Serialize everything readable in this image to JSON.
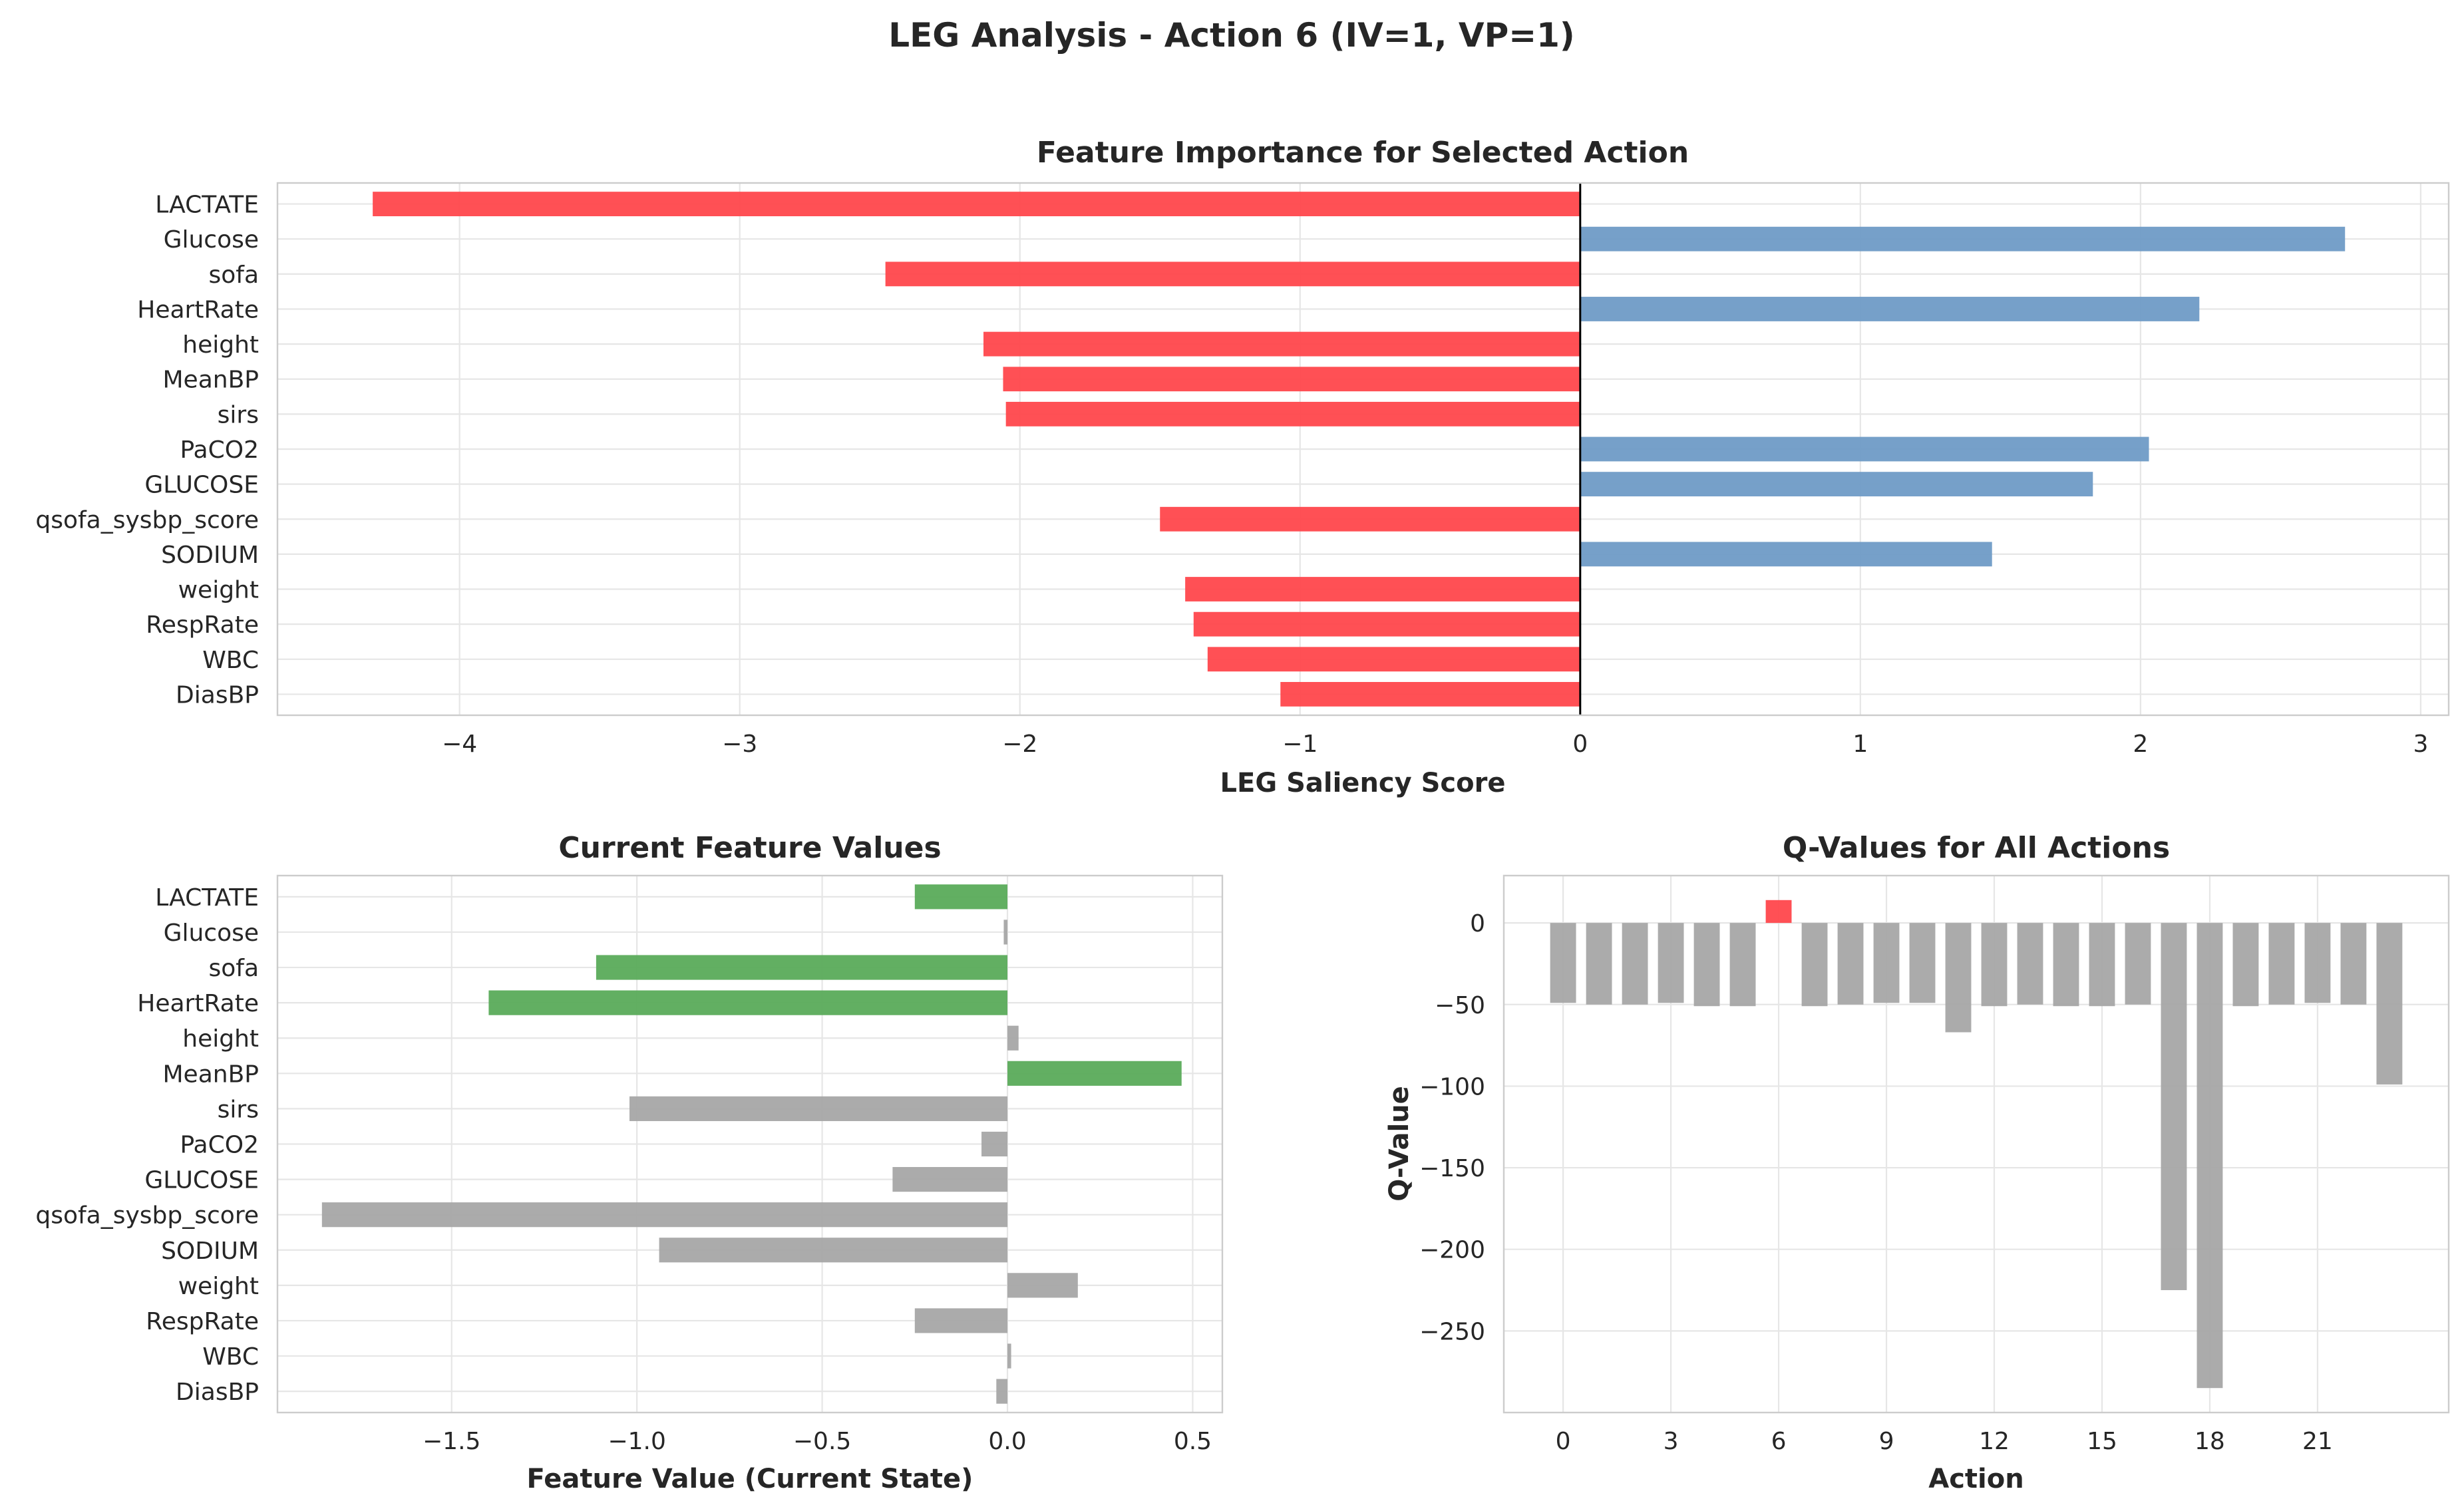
{
  "suptitle": "LEG Analysis - Action 6 (IV=1, VP=1)",
  "colors": {
    "negative": "#ff474c",
    "positive": "#6f9bc6",
    "highlight_value": "#5aab5a",
    "neutral": "#a6a6a6",
    "selected_action": "#ff474c",
    "zero_line": "#000000"
  },
  "chart_data": [
    {
      "type": "bar",
      "orientation": "horizontal",
      "title": "Feature Importance for Selected Action",
      "xlabel": "LEG Saliency Score",
      "ylabel": "",
      "categories": [
        "LACTATE",
        "Glucose",
        "sofa",
        "HeartRate",
        "height",
        "MeanBP",
        "sirs",
        "PaCO2",
        "GLUCOSE",
        "qsofa_sysbp_score",
        "SODIUM",
        "weight",
        "RespRate",
        "WBC",
        "DiasBP"
      ],
      "values": [
        -4.31,
        2.73,
        -2.48,
        2.21,
        -2.13,
        -2.06,
        -2.05,
        2.03,
        1.83,
        -1.5,
        1.47,
        -1.41,
        -1.38,
        -1.33,
        -1.07
      ],
      "xlim": [
        -4.65,
        3.1
      ],
      "xticks": [
        -4,
        -3,
        -2,
        -1,
        0,
        1,
        2,
        3
      ],
      "xtick_labels": [
        "−4",
        "−3",
        "−2",
        "−1",
        "0",
        "1",
        "2",
        "3"
      ],
      "grid": true
    },
    {
      "type": "bar",
      "orientation": "horizontal",
      "title": "Current Feature Values",
      "xlabel": "Feature Value (Current State)",
      "ylabel": "",
      "categories": [
        "LACTATE",
        "Glucose",
        "sofa",
        "HeartRate",
        "height",
        "MeanBP",
        "sirs",
        "PaCO2",
        "GLUCOSE",
        "qsofa_sysbp_score",
        "SODIUM",
        "weight",
        "RespRate",
        "WBC",
        "DiasBP"
      ],
      "values": [
        -0.25,
        -0.01,
        -1.11,
        -1.4,
        0.03,
        0.47,
        -1.02,
        -0.07,
        -0.31,
        -1.85,
        -0.94,
        0.19,
        -0.25,
        0.01,
        -0.03
      ],
      "highlighted": [
        true,
        false,
        true,
        true,
        false,
        true,
        false,
        false,
        false,
        false,
        false,
        false,
        false,
        false,
        false
      ],
      "xlim": [
        -1.97,
        0.58
      ],
      "xticks": [
        -1.5,
        -1.0,
        -0.5,
        0.0,
        0.5
      ],
      "xtick_labels": [
        "−1.5",
        "−1.0",
        "−0.5",
        "0.0",
        "0.5"
      ],
      "grid": true
    },
    {
      "type": "bar",
      "title": "Q-Values for All Actions",
      "xlabel": "Action",
      "ylabel": "Q-Value",
      "categories": [
        0,
        1,
        2,
        3,
        4,
        5,
        6,
        7,
        8,
        9,
        10,
        11,
        12,
        13,
        14,
        15,
        16,
        17,
        18,
        19,
        20,
        21,
        22,
        23
      ],
      "values": [
        -49,
        -50,
        -50,
        -49,
        -51,
        -51,
        14,
        -51,
        -50,
        -49,
        -49,
        -67,
        -51,
        -50,
        -51,
        -51,
        -50,
        -225,
        -285,
        -51,
        -50,
        -49,
        -50,
        -99
      ],
      "selected_index": 6,
      "xlim": [
        -1.65,
        24.65
      ],
      "ylim": [
        -300,
        29
      ],
      "xticks": [
        0,
        3,
        6,
        9,
        12,
        15,
        18,
        21
      ],
      "xtick_labels": [
        "0",
        "3",
        "6",
        "9",
        "12",
        "15",
        "18",
        "21"
      ],
      "yticks": [
        0,
        -50,
        -100,
        -150,
        -200,
        -250
      ],
      "ytick_labels": [
        "0",
        "−50",
        "−100",
        "−150",
        "−200",
        "−250"
      ],
      "grid": true
    }
  ]
}
